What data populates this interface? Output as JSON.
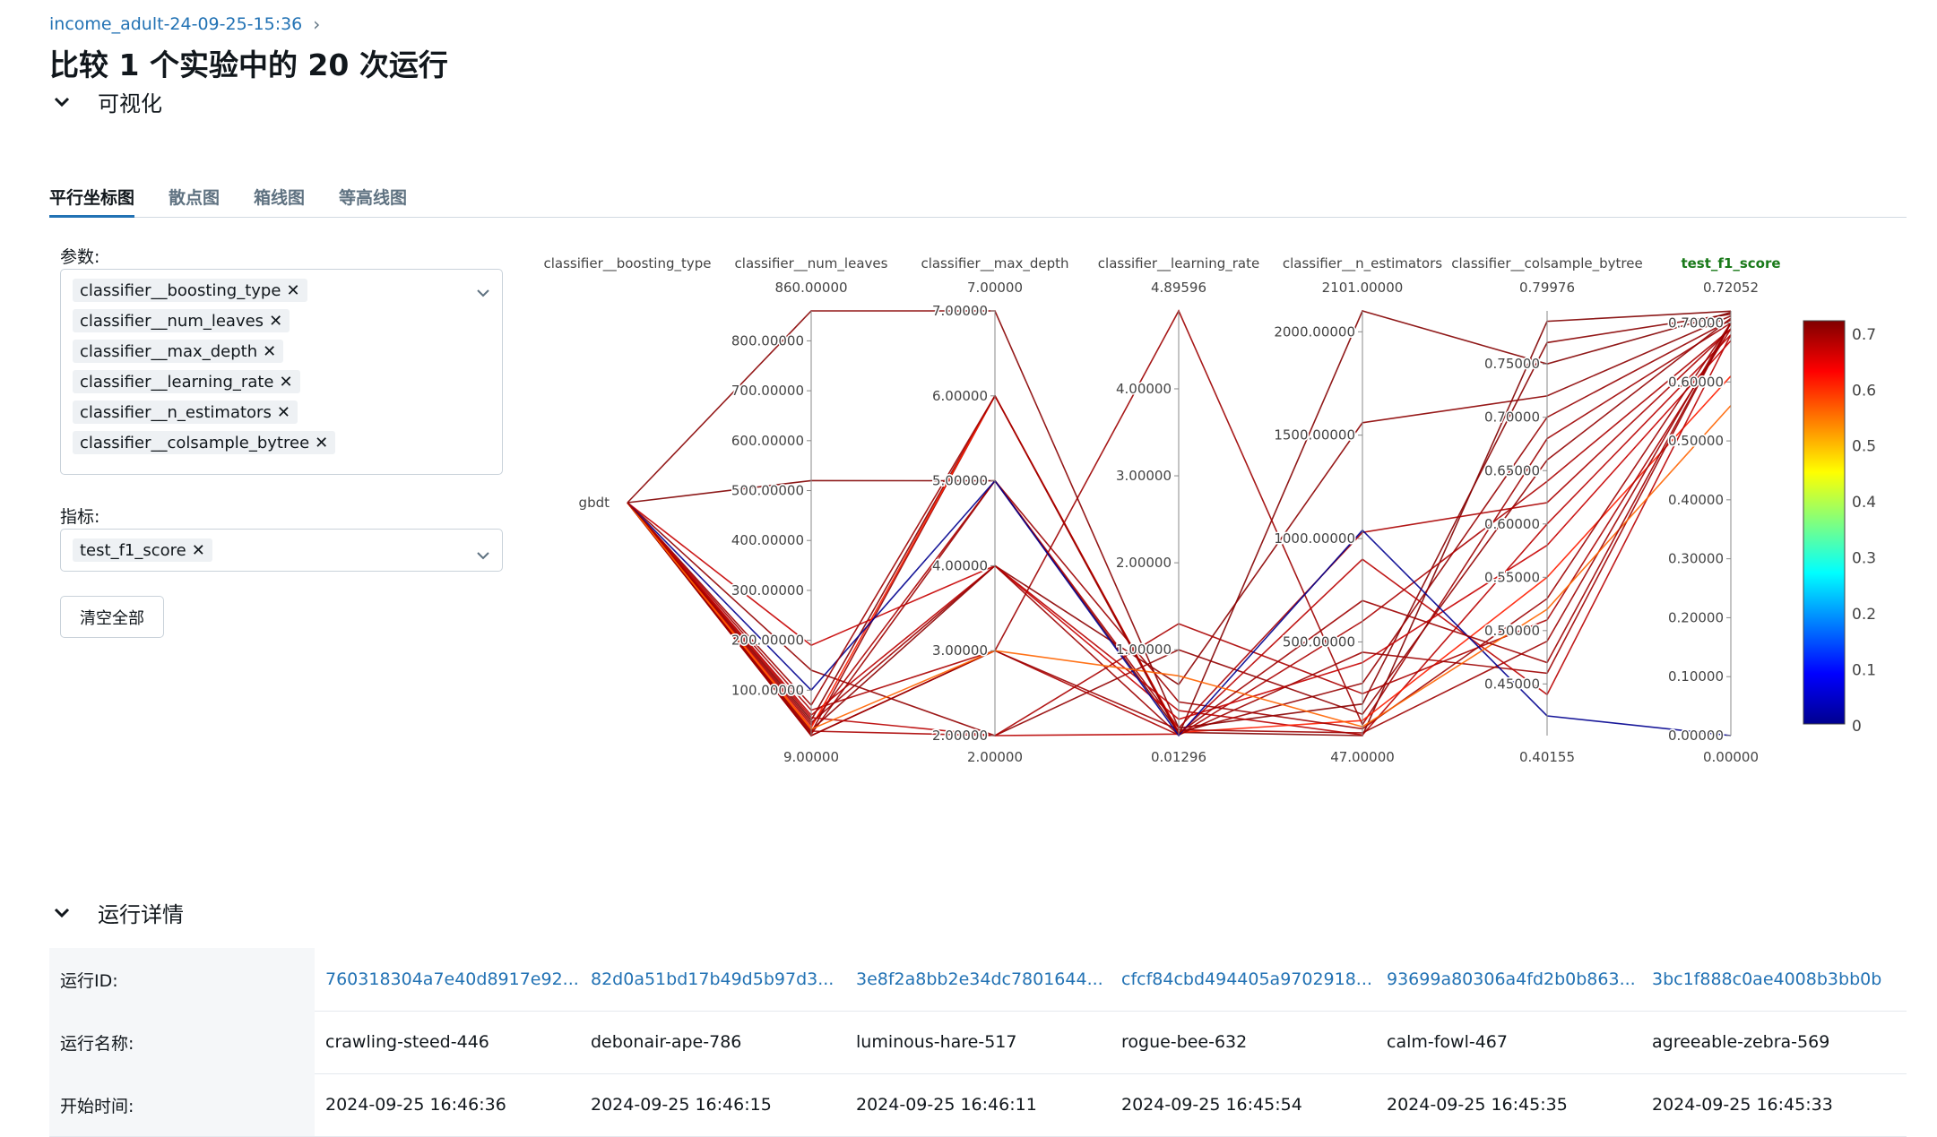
{
  "breadcrumb": {
    "experiment": "income_adult-24-09-25-15:36"
  },
  "page_title": "比较 1 个实验中的 20 次运行",
  "visualization": {
    "section_label": "可视化",
    "tabs": [
      "平行坐标图",
      "散点图",
      "箱线图",
      "等高线图"
    ],
    "params_label": "参数:",
    "params": [
      "classifier__boosting_type",
      "classifier__num_leaves",
      "classifier__max_depth",
      "classifier__learning_rate",
      "classifier__n_estimators",
      "classifier__colsample_bytree"
    ],
    "metrics_label": "指标:",
    "metrics": [
      "test_f1_score"
    ],
    "clear_label": "清空全部"
  },
  "chart_data": {
    "type": "parallel_coordinates",
    "colorscale": "jet",
    "color_metric": "test_f1_score",
    "colorbar_ticks": [
      "0.7",
      "0.6",
      "0.5",
      "0.4",
      "0.3",
      "0.2",
      "0.1",
      "0"
    ],
    "axes": [
      {
        "name": "classifier__boosting_type",
        "categorical": true,
        "top": "",
        "bottom": "",
        "ticks": [
          "gbdt"
        ]
      },
      {
        "name": "classifier__num_leaves",
        "top": "860.00000",
        "bottom": "9.00000",
        "ticks": [
          "800.00000",
          "700.00000",
          "600.00000",
          "500.00000",
          "400.00000",
          "300.00000",
          "200.00000",
          "100.00000"
        ]
      },
      {
        "name": "classifier__max_depth",
        "top": "7.00000",
        "bottom": "2.00000",
        "ticks": [
          "7.00000",
          "6.00000",
          "5.00000",
          "4.00000",
          "3.00000",
          "2.00000"
        ]
      },
      {
        "name": "classifier__learning_rate",
        "top": "4.89596",
        "bottom": "0.01296",
        "ticks": [
          "4.00000",
          "3.00000",
          "2.00000",
          "1.00000"
        ]
      },
      {
        "name": "classifier__n_estimators",
        "top": "2101.00000",
        "bottom": "47.00000",
        "ticks": [
          "2000.00000",
          "1500.00000",
          "1000.00000",
          "500.00000"
        ]
      },
      {
        "name": "classifier__colsample_bytree",
        "top": "0.79976",
        "bottom": "0.40155",
        "ticks": [
          "0.75000",
          "0.70000",
          "0.65000",
          "0.60000",
          "0.55000",
          "0.50000",
          "0.45000"
        ]
      },
      {
        "name": "test_f1_score",
        "top": "0.72052",
        "bottom": "0.00000",
        "ticks": [
          "0.70000",
          "0.60000",
          "0.50000",
          "0.40000",
          "0.30000",
          "0.20000",
          "0.10000",
          "0.00000"
        ],
        "highlight": true
      }
    ],
    "ranges": [
      [
        0,
        1
      ],
      [
        9,
        860
      ],
      [
        2,
        7
      ],
      [
        0.01296,
        4.89596
      ],
      [
        47,
        2101
      ],
      [
        0.40155,
        0.79976
      ],
      [
        0,
        0.72052
      ]
    ],
    "runs": [
      [
        0,
        520,
        5,
        0.05,
        47,
        0.79,
        0.72
      ],
      [
        0,
        860,
        7,
        0.1,
        200,
        0.77,
        0.715
      ],
      [
        0,
        40,
        6,
        0.02,
        2101,
        0.75,
        0.718
      ],
      [
        0,
        20,
        4,
        0.6,
        1560,
        0.72,
        0.712
      ],
      [
        0,
        15,
        6,
        0.05,
        300,
        0.7,
        0.705
      ],
      [
        0,
        9,
        3,
        4.89596,
        100,
        0.68,
        0.7
      ],
      [
        0,
        140,
        2,
        1.0,
        150,
        0.66,
        0.708
      ],
      [
        0,
        60,
        3,
        0.02,
        600,
        0.64,
        0.69
      ],
      [
        0,
        30,
        5,
        0.1,
        1030,
        0.62,
        0.69
      ],
      [
        0,
        50,
        4,
        0.3,
        50,
        0.6,
        0.68
      ],
      [
        0,
        190,
        4,
        0.2,
        400,
        0.58,
        0.67
      ],
      [
        0,
        25,
        6,
        0.05,
        120,
        0.55,
        0.61
      ],
      [
        0,
        12,
        5,
        0.4,
        80,
        0.53,
        0.7
      ],
      [
        0,
        18,
        2,
        1.3,
        250,
        0.51,
        0.69
      ],
      [
        0,
        9,
        3,
        0.08,
        60,
        0.49,
        0.7
      ],
      [
        0,
        35,
        4,
        0.02,
        450,
        0.46,
        0.7
      ],
      [
        0,
        45,
        2,
        0.03,
        900,
        0.44,
        0.68
      ],
      [
        0,
        100,
        5,
        0.015,
        1040,
        0.42,
        0.0
      ],
      [
        0,
        22,
        3,
        0.7,
        90,
        0.52,
        0.56
      ],
      [
        0,
        70,
        6,
        0.04,
        700,
        0.47,
        0.7
      ]
    ]
  },
  "run_details": {
    "section_label": "运行详情",
    "rows": [
      {
        "label": "运行ID:",
        "link": true,
        "values": [
          "760318304a7e40d8917e92...",
          "82d0a51bd17b49d5b97d3...",
          "3e8f2a8bb2e34dc7801644...",
          "cfcf84cbd494405a9702918...",
          "93699a80306a4fd2b0b863...",
          "3bc1f888c0ae4008b3bb0b"
        ]
      },
      {
        "label": "运行名称:",
        "link": false,
        "values": [
          "crawling-steed-446",
          "debonair-ape-786",
          "luminous-hare-517",
          "rogue-bee-632",
          "calm-fowl-467",
          "agreeable-zebra-569"
        ]
      },
      {
        "label": "开始时间:",
        "link": false,
        "values": [
          "2024-09-25 16:46:36",
          "2024-09-25 16:46:15",
          "2024-09-25 16:46:11",
          "2024-09-25 16:45:54",
          "2024-09-25 16:45:35",
          "2024-09-25 16:45:33"
        ]
      }
    ]
  }
}
